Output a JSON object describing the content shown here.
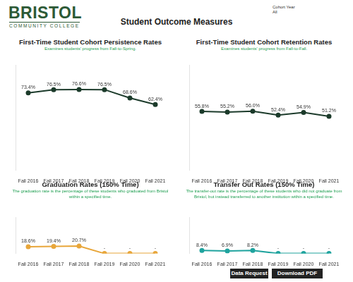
{
  "header": {
    "logo": {
      "name": "BRISTOL",
      "subtitle": "COMMUNITY COLLEGE"
    },
    "title": "Student Outcome Measures",
    "filter": {
      "label": "Cohort Year",
      "value": "All"
    }
  },
  "buttons": [
    "Data Request",
    "Download PDF"
  ],
  "chart_data": [
    {
      "type": "line",
      "title": "First-Time Student Cohort Persistence Rates",
      "subtitle": "Examines students' progress from Fall-to-Spring.",
      "categories": [
        "Fall 2016",
        "Fall 2017",
        "Fall 2018",
        "Fall 2019",
        "Fall 2020",
        "Fall 2021"
      ],
      "values": [
        73.4,
        76.5,
        76.6,
        76.5,
        68.6,
        62.4
      ],
      "value_labels": [
        "73.4%",
        "76.5%",
        "76.6%",
        "76.5%",
        "68.6%",
        "62.4%"
      ],
      "color": "#1c3b2b",
      "marker": "circle",
      "ylim": [
        0,
        100
      ],
      "grid": false,
      "tick_labels": "x",
      "data_labels": true
    },
    {
      "type": "line",
      "title": "First-Time Student Cohort Retention Rates",
      "subtitle": "Examines students' progress from Fall-to-Fall.",
      "categories": [
        "Fall 2016",
        "Fall 2017",
        "Fall 2018",
        "Fall 2019",
        "Fall 2020",
        "Fall 2021"
      ],
      "values": [
        55.8,
        55.2,
        56.0,
        52.4,
        54.9,
        51.2
      ],
      "value_labels": [
        "55.8%",
        "55.2%",
        "56.0%",
        "52.4%",
        "54.9%",
        "51.2%"
      ],
      "color": "#1c3b2b",
      "marker": "circle",
      "ylim": [
        0,
        100
      ],
      "grid": false,
      "tick_labels": "x",
      "data_labels": true
    },
    {
      "type": "line",
      "title": "Graduation Rates (150% Time)",
      "subtitle": "The graduation rate is the percentage of these students who graduated from Bristol within a specified time.",
      "categories": [
        "Fall 2016",
        "Fall 2017",
        "Fall 2018",
        "Fall 2019",
        "Fall 2020",
        "Fall 2021"
      ],
      "values": [
        18.6,
        19.4,
        20.7,
        0,
        0,
        0
      ],
      "value_labels": [
        "18.6%",
        "19.4%",
        "20.7%",
        "-",
        "-",
        "-"
      ],
      "color": "#e8a63a",
      "marker": "circle",
      "ylim": [
        0,
        100
      ],
      "grid": false,
      "tick_labels": "x",
      "data_labels": true
    },
    {
      "type": "line",
      "title": "Transfer Out Rates (150% Time)",
      "subtitle": "The transfer-out rate is the percentage of these students who did not graduate from Bristol, but instead transferred to another institution  within a specified time.",
      "categories": [
        "Fall 2016",
        "Fall 2017",
        "Fall 2018",
        "Fall 2019",
        "Fall 2020",
        "Fall 2021"
      ],
      "values": [
        8.4,
        6.9,
        8.2,
        0,
        0,
        0
      ],
      "value_labels": [
        "8.4%",
        "6.9%",
        "8.2%",
        "-",
        "-",
        "-"
      ],
      "color": "#1fa39e",
      "marker": "circle",
      "ylim": [
        0,
        100
      ],
      "grid": false,
      "tick_labels": "x",
      "data_labels": true
    }
  ]
}
